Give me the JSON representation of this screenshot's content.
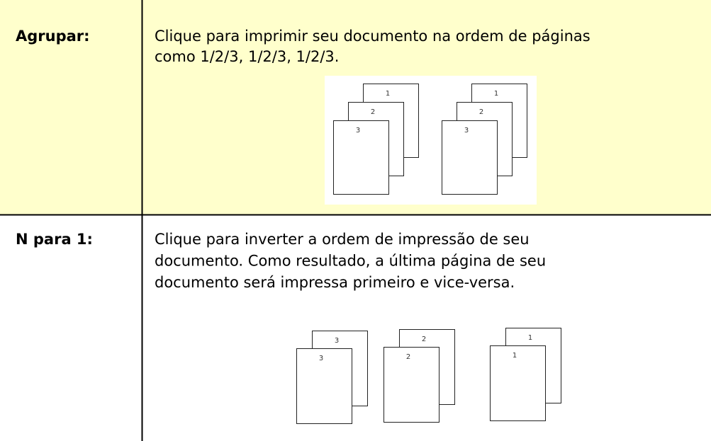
{
  "table": {
    "rows": [
      {
        "label": "Agrupar:",
        "description": [
          "Clique para imprimir seu documento na ordem de páginas",
          "como 1/2/3, 1/2/3, 1/2/3."
        ],
        "figure": {
          "stacks": [
            [
              "1",
              "2",
              "3"
            ],
            [
              "1",
              "2",
              "3"
            ]
          ]
        }
      },
      {
        "label": "N para 1:",
        "description": [
          "Clique para inverter a ordem de impressão de seu",
          "documento. Como resultado, a última página de seu",
          "documento será impressa primeiro e vice-versa."
        ],
        "figure": {
          "stacks": [
            [
              "3",
              "3"
            ],
            [
              "2",
              "2"
            ],
            [
              "1",
              "1"
            ]
          ]
        }
      }
    ]
  }
}
